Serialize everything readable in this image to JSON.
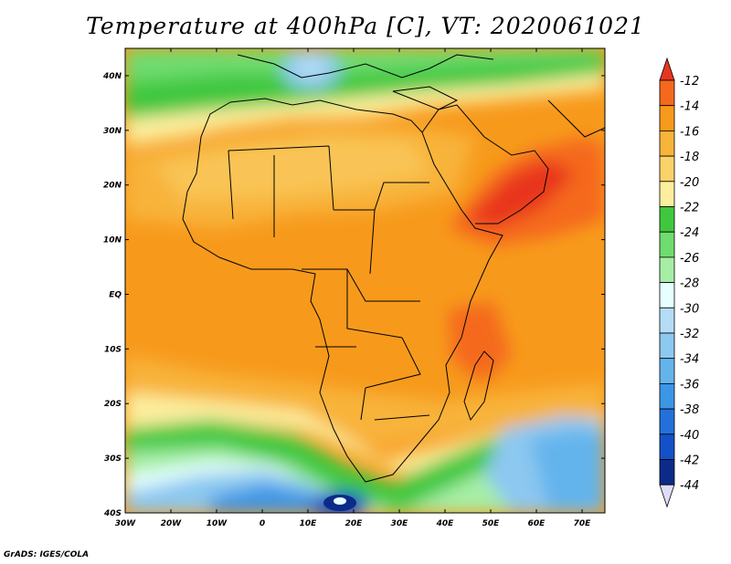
{
  "title": "Temperature at 400hPa [C], VT: 2020061021",
  "credit": "GrADS: IGES/COLA",
  "map": {
    "lon_labels": [
      "30W",
      "20W",
      "10W",
      "0",
      "10E",
      "20E",
      "30E",
      "40E",
      "50E",
      "60E",
      "70E"
    ],
    "lat_labels": [
      "40N",
      "30N",
      "20N",
      "10N",
      "EQ",
      "10S",
      "20S",
      "30S",
      "40S"
    ],
    "lon_range": [
      -30,
      75
    ],
    "lat_range": [
      -40,
      45
    ]
  },
  "colorbar": {
    "levels": [
      "-12",
      "-14",
      "-16",
      "-18",
      "-20",
      "-22",
      "-24",
      "-26",
      "-28",
      "-30",
      "-32",
      "-34",
      "-36",
      "-38",
      "-40",
      "-42",
      "-44"
    ],
    "colors": [
      "#e8361e",
      "#f5691e",
      "#f79a1c",
      "#f8b33a",
      "#fad26a",
      "#fcee9e",
      "#3fc83f",
      "#6fdc6f",
      "#a6eea6",
      "#e6ffff",
      "#b4dcf5",
      "#8cc8f0",
      "#64b4ec",
      "#3c96e6",
      "#2470da",
      "#1450c8",
      "#0c2a88",
      "#e0dcf8"
    ]
  }
}
